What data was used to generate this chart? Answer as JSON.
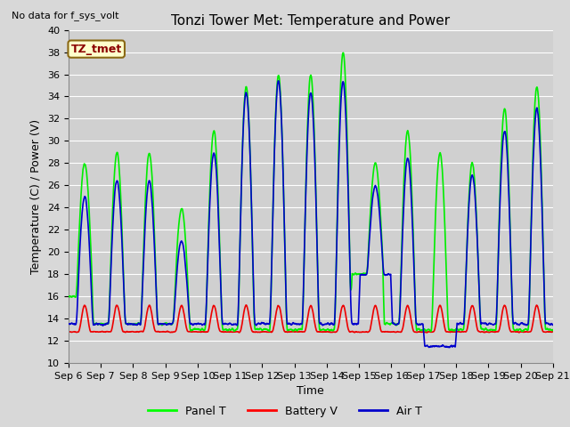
{
  "title": "Tonzi Tower Met: Temperature and Power",
  "xlabel": "Time",
  "ylabel": "Temperature (C) / Power (V)",
  "no_data_text": "No data for f_sys_volt",
  "annotation_text": "TZ_tmet",
  "ylim": [
    10,
    40
  ],
  "yticks": [
    10,
    12,
    14,
    16,
    18,
    20,
    22,
    24,
    26,
    28,
    30,
    32,
    34,
    36,
    38,
    40
  ],
  "xtick_labels": [
    "Sep 6",
    "Sep 7",
    "Sep 8",
    "Sep 9",
    "Sep 10",
    "Sep 11",
    "Sep 12",
    "Sep 13",
    "Sep 14",
    "Sep 15",
    "Sep 16",
    "Sep 17",
    "Sep 18",
    "Sep 19",
    "Sep 20",
    "Sep 21"
  ],
  "legend": [
    {
      "label": "Panel T",
      "color": "#00FF00"
    },
    {
      "label": "Battery V",
      "color": "#FF0000"
    },
    {
      "label": "Air T",
      "color": "#0000CC"
    }
  ],
  "background_color": "#D8D8D8",
  "plot_bg_color": "#D0D0D0",
  "grid_color": "#FFFFFF",
  "title_fontsize": 11,
  "axis_label_fontsize": 9,
  "tick_fontsize": 8,
  "panel_t_color": "#00EE00",
  "battery_v_color": "#EE0000",
  "air_t_color": "#0000CC",
  "line_width": 1.2
}
